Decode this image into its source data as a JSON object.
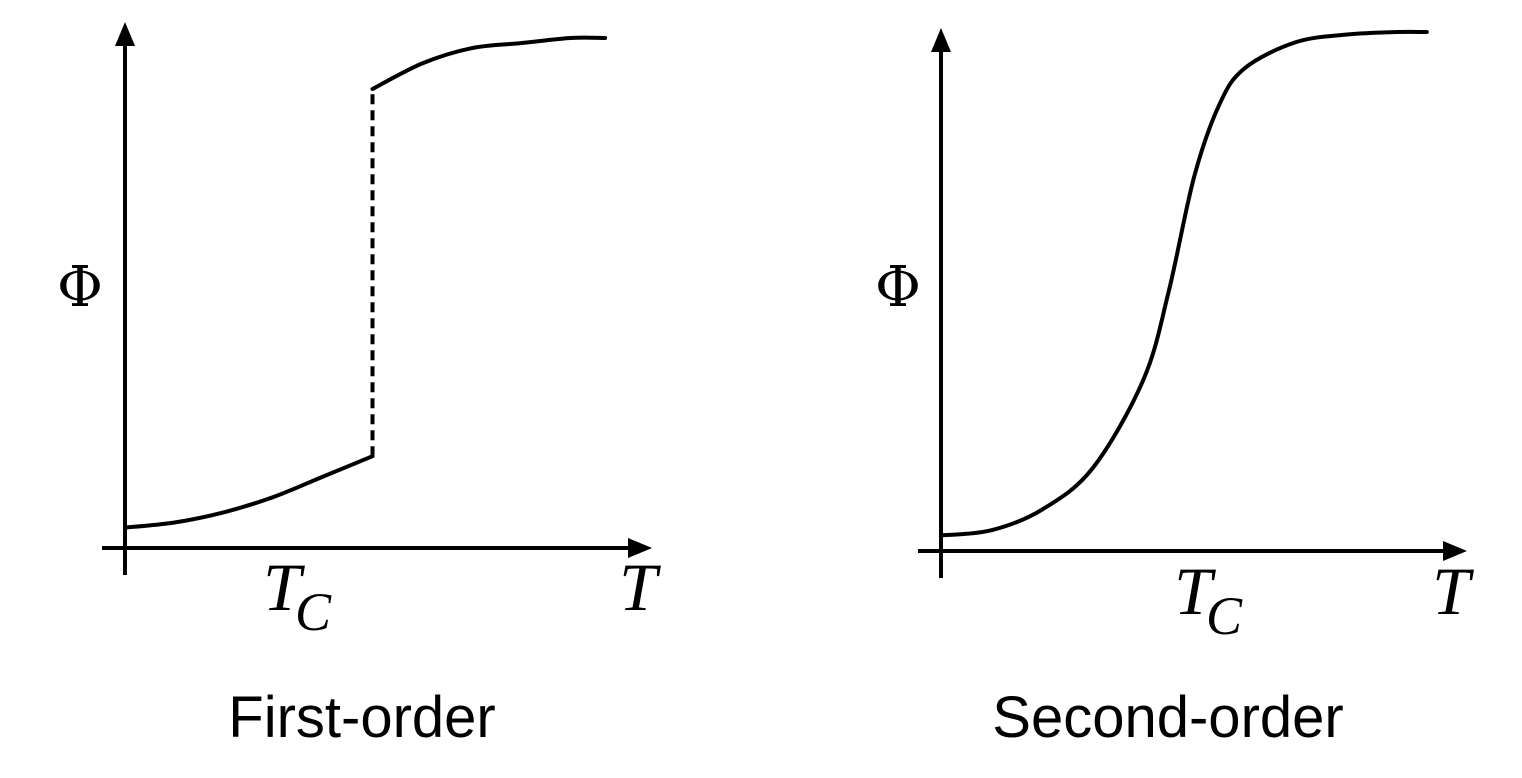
{
  "chart_data": [
    {
      "type": "line",
      "caption": "First-order",
      "ylabel": "Φ",
      "xlabel": "T",
      "x_tick_labels": [
        {
          "main": "T",
          "sub": "C",
          "at": 0.5
        }
      ],
      "xlim": [
        0,
        1
      ],
      "ylim": [
        0,
        1
      ],
      "transition": "discontinuous",
      "series": [
        {
          "segment": "below-transition",
          "x": [
            0.0,
            0.1,
            0.2,
            0.3,
            0.4,
            0.5
          ],
          "y": [
            0.04,
            0.05,
            0.07,
            0.1,
            0.14,
            0.18
          ]
        },
        {
          "segment": "jump",
          "style": "dashed",
          "x": [
            0.5,
            0.5
          ],
          "y": [
            0.18,
            0.9
          ]
        },
        {
          "segment": "above-transition",
          "x": [
            0.5,
            0.6,
            0.7,
            0.8,
            0.9,
            0.97
          ],
          "y": [
            0.9,
            0.95,
            0.98,
            0.99,
            1.0,
            1.0
          ]
        }
      ]
    },
    {
      "type": "line",
      "caption": "Second-order",
      "ylabel": "Φ",
      "xlabel": "T",
      "x_tick_labels": [
        {
          "main": "T",
          "sub": "C",
          "at": 0.5
        }
      ],
      "xlim": [
        0,
        1
      ],
      "ylim": [
        0,
        1
      ],
      "transition": "continuous",
      "series": [
        {
          "segment": "order-parameter",
          "x": [
            0.0,
            0.1,
            0.2,
            0.3,
            0.4,
            0.45,
            0.5,
            0.55,
            0.6,
            0.7,
            0.8,
            0.9,
            0.96
          ],
          "y": [
            0.03,
            0.04,
            0.08,
            0.16,
            0.33,
            0.5,
            0.72,
            0.86,
            0.93,
            0.98,
            0.995,
            1.0,
            1.0
          ]
        }
      ]
    }
  ]
}
